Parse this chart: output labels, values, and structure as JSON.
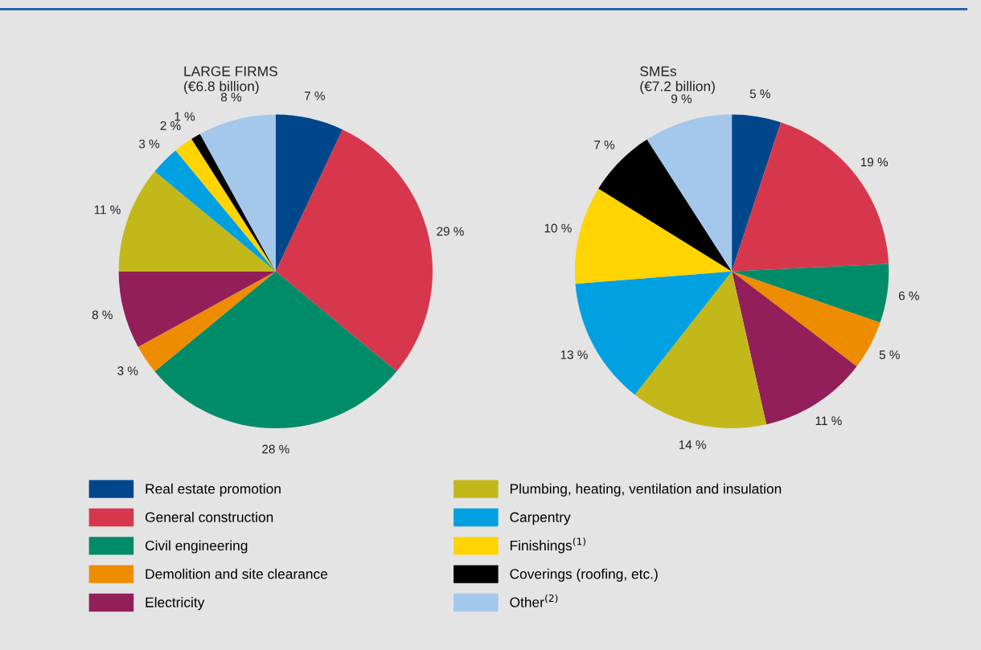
{
  "chart_data": [
    {
      "type": "pie",
      "title": "LARGE FIRMS\n(€6.8 billion)",
      "legend": "bottom",
      "categories": [
        "Real estate promotion",
        "General construction",
        "Civil engineering",
        "Demolition and site clearance",
        "Electricity",
        "Plumbing, heating, ventilation and insulation",
        "Carpentry",
        "Finishings$^{(1)}$",
        "Coverings (roofing, etc.)",
        "Other$^{(2)}$"
      ],
      "values": [
        7,
        29,
        28,
        3,
        8,
        11,
        3,
        2,
        1,
        8
      ],
      "value_labels": [
        "7 %",
        "29 %",
        "28 %",
        "3 %",
        "8 %",
        "11 %",
        "3 %",
        "2 %",
        "1 %",
        "8 %"
      ],
      "colors": [
        "#00468b",
        "#d7374c",
        "#008c68",
        "#ee8c00",
        "#921e5a",
        "#c3b81a",
        "#00a0e1",
        "#ffd400",
        "#000000",
        "#a4c7ec"
      ]
    },
    {
      "type": "pie",
      "title": "SMEs\n(€7.2 billion)",
      "categories": [
        null,
        null,
        null,
        null,
        null,
        null,
        null,
        null,
        null,
        null
      ],
      "values": [
        5,
        19,
        6,
        5,
        11,
        14,
        13,
        10,
        7,
        9
      ],
      "value_labels": [
        "5 %",
        "19 %",
        "6 %",
        "5 %",
        "11 %",
        "14 %",
        "13 %",
        "10 %",
        "7 %",
        "9 %"
      ],
      "colors": [
        "#00468b",
        "#d7374c",
        "#008c68",
        "#ee8c00",
        "#921e5a",
        "#c3b81a",
        "#00a0e1",
        "#ffd400",
        "#000000",
        "#a4c7ec"
      ]
    }
  ]
}
